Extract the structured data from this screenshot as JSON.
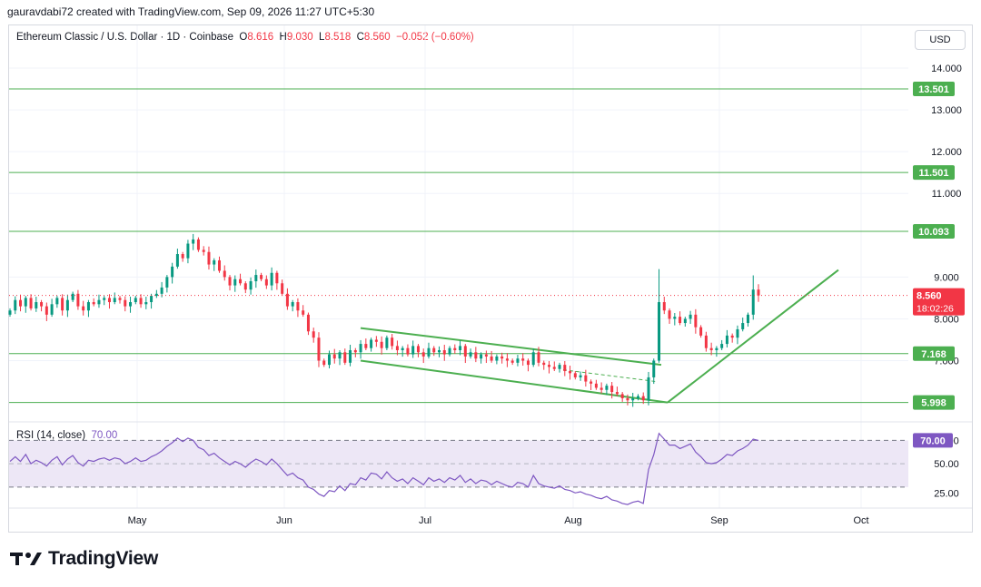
{
  "credit": "gauravdabi72 created with TradingView.com, Sep 09, 2026 11:27 UTC+5:30",
  "header": {
    "symbol": "Ethereum Classic / U.S. Dollar · 1D · Coinbase",
    "o_label": "O",
    "o_value": "8.616",
    "h_label": "H",
    "h_value": "9.030",
    "l_label": "L",
    "l_value": "8.518",
    "c_label": "C",
    "c_value": "8.560",
    "change": "−0.052 (−0.60%)"
  },
  "currency": "USD",
  "rsi_legend": {
    "label": "RSI (14, close)",
    "value": "70.00"
  },
  "brand": "TradingView",
  "colors": {
    "up": "#089981",
    "down": "#f23645",
    "level": "#4caf50",
    "rsi": "#7e57c2",
    "rsi_band": "#ede7f6"
  },
  "chart_data": [
    {
      "type": "candlestick",
      "title": "Ethereum Classic / U.S. Dollar · 1D · Coinbase",
      "x_labels": [
        "May",
        "Jun",
        "Jul",
        "Aug",
        "Sep",
        "Oct"
      ],
      "y_ticks": [
        "14.000",
        "13.000",
        "12.000",
        "11.000",
        "9.000",
        "8.000",
        "7.000"
      ],
      "ylim": [
        5.6,
        14.5
      ],
      "last_price": {
        "value": 8.56,
        "label": "8.560",
        "countdown": "18:02:26"
      },
      "levels": [
        {
          "value": 13.501,
          "label": "13.501"
        },
        {
          "value": 11.501,
          "label": "11.501"
        },
        {
          "value": 10.093,
          "label": "10.093"
        },
        {
          "value": 7.168,
          "label": "7.168"
        },
        {
          "value": 5.998,
          "label": "5.998"
        }
      ],
      "closes": [
        8.2,
        8.45,
        8.3,
        8.5,
        8.25,
        8.4,
        8.3,
        8.1,
        8.35,
        8.5,
        8.2,
        8.45,
        8.6,
        8.3,
        8.2,
        8.4,
        8.35,
        8.45,
        8.5,
        8.4,
        8.5,
        8.45,
        8.3,
        8.4,
        8.5,
        8.35,
        8.4,
        8.55,
        8.6,
        8.75,
        9.0,
        9.25,
        9.55,
        9.45,
        9.8,
        9.9,
        9.65,
        9.6,
        9.3,
        9.4,
        9.15,
        9.0,
        8.8,
        8.95,
        8.85,
        8.7,
        8.9,
        9.05,
        8.95,
        8.8,
        9.1,
        8.85,
        8.6,
        8.3,
        8.4,
        8.2,
        8.1,
        7.7,
        7.55,
        7.0,
        6.9,
        7.15,
        7.05,
        7.2,
        6.95,
        7.25,
        7.2,
        7.4,
        7.3,
        7.5,
        7.45,
        7.3,
        7.55,
        7.35,
        7.25,
        7.3,
        7.15,
        7.35,
        7.2,
        7.1,
        7.3,
        7.2,
        7.25,
        7.15,
        7.3,
        7.25,
        7.35,
        7.1,
        7.2,
        7.05,
        7.15,
        7.1,
        7.0,
        7.1,
        7.05,
        7.0,
        6.95,
        7.05,
        7.0,
        6.9,
        7.2,
        6.95,
        6.9,
        6.85,
        6.8,
        6.9,
        6.75,
        6.7,
        6.6,
        6.65,
        6.5,
        6.45,
        6.35,
        6.3,
        6.4,
        6.25,
        6.2,
        6.1,
        6.05,
        6.1,
        6.15,
        6.05,
        6.6,
        7.0,
        8.4,
        8.2,
        8.0,
        8.05,
        7.9,
        8.0,
        8.1,
        7.8,
        7.6,
        7.3,
        7.25,
        7.3,
        7.4,
        7.6,
        7.55,
        7.75,
        7.9,
        8.1,
        8.7,
        8.56
      ],
      "rsi": {
        "label": "RSI (14, close)",
        "levels": [
          70,
          50,
          30
        ],
        "y_ticks": [
          "70.00",
          "50.00",
          "25.00"
        ],
        "ylim": [
          12,
          82
        ],
        "values": [
          52,
          56,
          52,
          58,
          50,
          53,
          51,
          48,
          53,
          56,
          49,
          54,
          57,
          51,
          48,
          53,
          52,
          54,
          55,
          53,
          55,
          54,
          50,
          52,
          55,
          52,
          53,
          56,
          58,
          61,
          65,
          68,
          72,
          69,
          72,
          70,
          64,
          62,
          57,
          59,
          55,
          52,
          49,
          52,
          50,
          47,
          51,
          54,
          52,
          49,
          54,
          50,
          45,
          40,
          42,
          38,
          36,
          30,
          28,
          24,
          22,
          27,
          26,
          31,
          27,
          33,
          32,
          38,
          36,
          42,
          41,
          37,
          43,
          38,
          35,
          37,
          33,
          38,
          35,
          32,
          38,
          35,
          37,
          34,
          38,
          36,
          40,
          34,
          37,
          33,
          36,
          35,
          32,
          35,
          33,
          31,
          30,
          34,
          33,
          30,
          40,
          33,
          31,
          30,
          29,
          31,
          28,
          27,
          25,
          26,
          24,
          23,
          21,
          20,
          22,
          19,
          18,
          16,
          15,
          17,
          18,
          16,
          45,
          58,
          76,
          71,
          66,
          66,
          63,
          65,
          67,
          60,
          56,
          51,
          50,
          51,
          54,
          58,
          57,
          61,
          63,
          66,
          71,
          70
        ]
      }
    }
  ]
}
